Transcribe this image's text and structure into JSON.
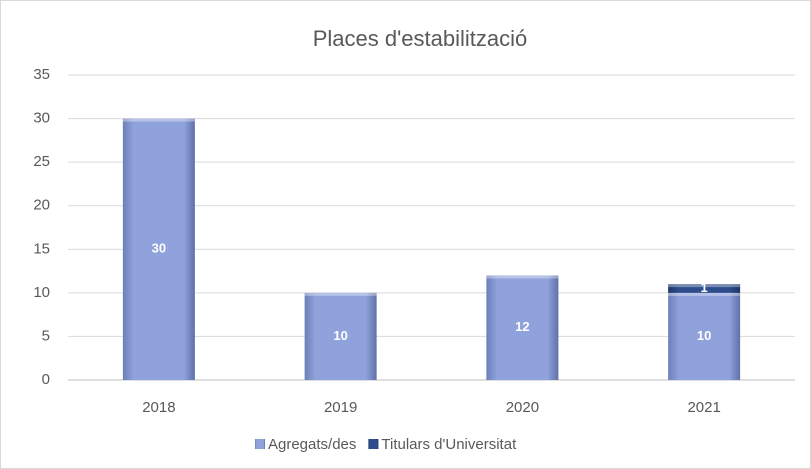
{
  "chart_data": {
    "type": "stacked_bar",
    "title": "Places d'estabilització",
    "categories": [
      "2018",
      "2019",
      "2020",
      "2021"
    ],
    "series": [
      {
        "name": "Agregats/des",
        "color": "#8fa2db",
        "values": [
          30,
          10,
          12,
          10
        ]
      },
      {
        "name": "Titulars d'Universitat",
        "color": "#2e4d8c",
        "values": [
          null,
          null,
          null,
          1
        ]
      }
    ],
    "ylim": [
      0,
      35
    ],
    "yticks": [
      0,
      5,
      10,
      15,
      20,
      25,
      30,
      35
    ],
    "grid": true,
    "legend": "bottom"
  }
}
